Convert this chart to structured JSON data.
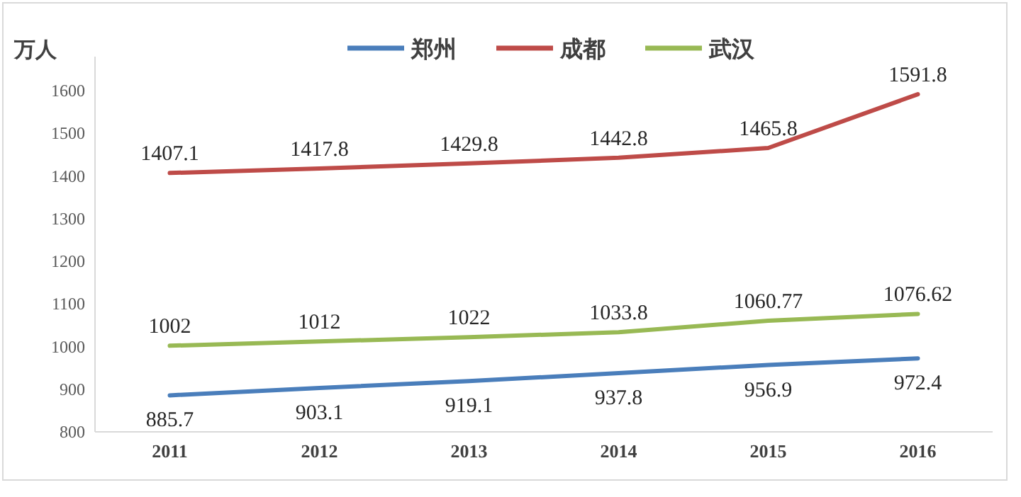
{
  "chart_data": {
    "type": "line",
    "ylabel": "万人",
    "categories": [
      "2011",
      "2012",
      "2013",
      "2014",
      "2015",
      "2016"
    ],
    "series": [
      {
        "name": "郑州",
        "color": "#4a7ebb",
        "values": [
          885.7,
          903.1,
          919.1,
          937.8,
          956.9,
          972.4
        ]
      },
      {
        "name": "成都",
        "color": "#be4b48",
        "values": [
          1407.1,
          1417.8,
          1429.8,
          1442.8,
          1465.8,
          1591.8
        ]
      },
      {
        "name": "武汉",
        "color": "#98b954",
        "values": [
          1002,
          1012,
          1022,
          1033.8,
          1060.77,
          1076.62
        ]
      }
    ],
    "ylim": [
      800,
      1680
    ],
    "yticks": [
      800,
      900,
      1000,
      1100,
      1200,
      1300,
      1400,
      1500,
      1600
    ],
    "data_labels": true,
    "legend": "top",
    "grid": false,
    "marker": "none",
    "line_style": "solid"
  }
}
